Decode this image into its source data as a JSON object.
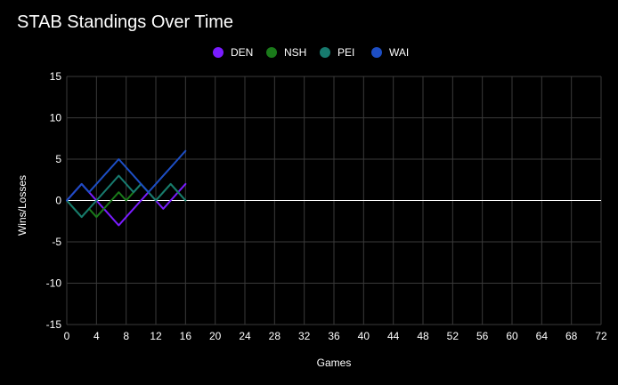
{
  "chart_data": {
    "type": "line",
    "title": "STAB Standings Over Time",
    "xlabel": "Games",
    "ylabel": "Wins/Losses",
    "xlim": [
      0,
      72
    ],
    "ylim": [
      -15,
      15
    ],
    "xticks": [
      0,
      4,
      8,
      12,
      16,
      20,
      24,
      28,
      32,
      36,
      40,
      44,
      48,
      52,
      56,
      60,
      64,
      68,
      72
    ],
    "yticks": [
      15,
      10,
      5,
      0,
      -5,
      -10,
      -15
    ],
    "grid": true,
    "legend_position": "top",
    "x": [
      0,
      1,
      2,
      3,
      4,
      5,
      6,
      7,
      8,
      9,
      10,
      11,
      12,
      13,
      14,
      15,
      16
    ],
    "series": [
      {
        "name": "DEN",
        "color": "#7a1cff",
        "values": [
          0,
          1,
          2,
          1,
          0,
          -1,
          -2,
          -3,
          -2,
          -1,
          0,
          1,
          0,
          -1,
          0,
          1,
          2
        ]
      },
      {
        "name": "NSH",
        "color": "#1a7a1a",
        "values": [
          0,
          -1,
          -2,
          -1,
          -2,
          -1,
          0,
          1,
          0,
          1,
          2,
          1,
          0,
          1,
          2,
          1,
          0
        ]
      },
      {
        "name": "PEI",
        "color": "#177a6e",
        "values": [
          0,
          -1,
          -2,
          -1,
          0,
          1,
          2,
          3,
          2,
          1,
          2,
          1,
          0,
          1,
          2,
          1,
          0
        ]
      },
      {
        "name": "WAI",
        "color": "#1d4ec4",
        "values": [
          0,
          1,
          2,
          1,
          2,
          3,
          4,
          5,
          4,
          3,
          2,
          1,
          2,
          3,
          4,
          5,
          6
        ]
      }
    ]
  }
}
